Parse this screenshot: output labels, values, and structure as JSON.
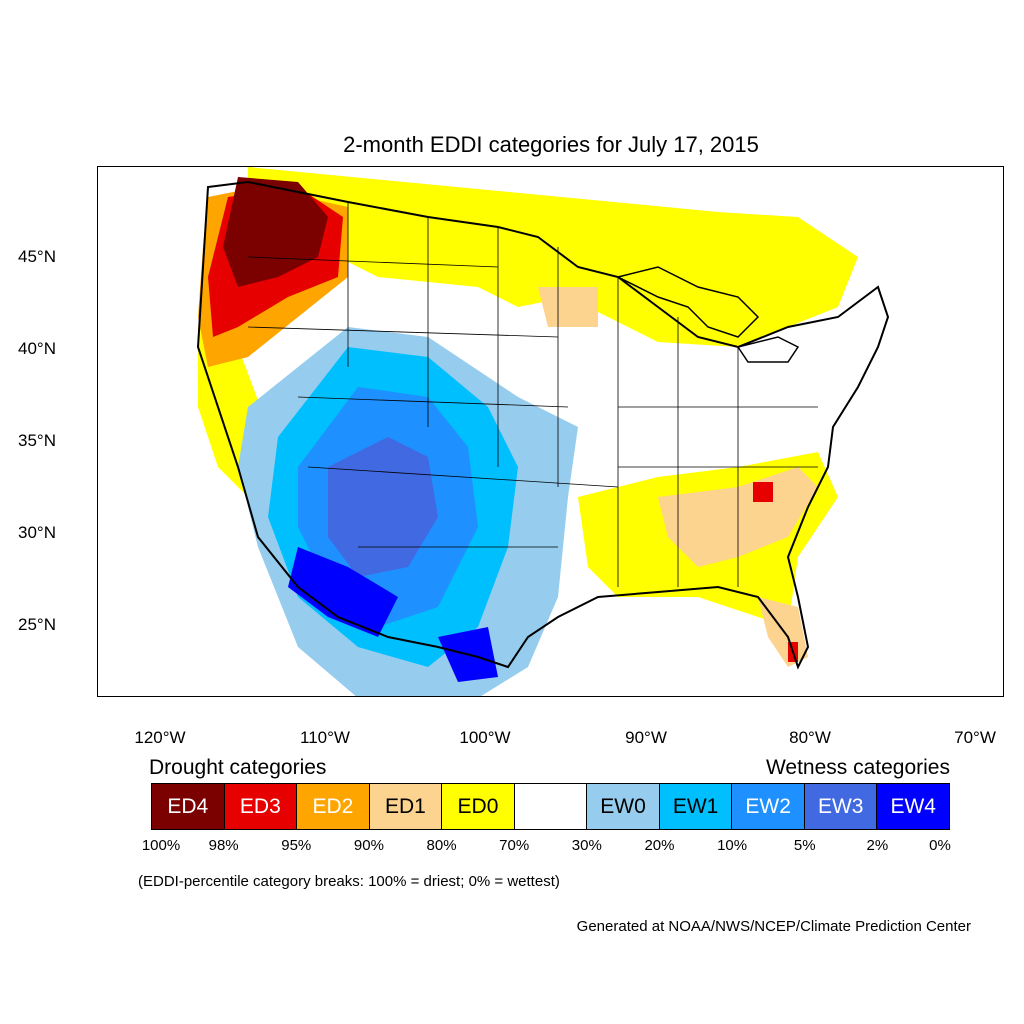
{
  "title": "2-month EDDI categories for July 17, 2015",
  "lat_labels": [
    "45°N",
    "40°N",
    "35°N",
    "30°N",
    "25°N"
  ],
  "lon_labels": [
    "120°W",
    "110°W",
    "100°W",
    "90°W",
    "80°W",
    "70°W"
  ],
  "drought_heading": "Drought categories",
  "wetness_heading": "Wetness categories",
  "legend": [
    {
      "label": "ED4",
      "color": "#7b0000",
      "text_color": "#ffffff"
    },
    {
      "label": "ED3",
      "color": "#e60000",
      "text_color": "#ffffff"
    },
    {
      "label": "ED2",
      "color": "#ffa500",
      "text_color": "#ffffff"
    },
    {
      "label": "ED1",
      "color": "#fcd38f",
      "text_color": "#000000"
    },
    {
      "label": "ED0",
      "color": "#ffff00",
      "text_color": "#000000"
    },
    {
      "label": "",
      "color": "#ffffff",
      "text_color": "#000000"
    },
    {
      "label": "EW0",
      "color": "#96cdee",
      "text_color": "#000000"
    },
    {
      "label": "EW1",
      "color": "#00bfff",
      "text_color": "#000000"
    },
    {
      "label": "EW2",
      "color": "#1e90ff",
      "text_color": "#ffffff"
    },
    {
      "label": "EW3",
      "color": "#4169e1",
      "text_color": "#ffffff"
    },
    {
      "label": "EW4",
      "color": "#0000ff",
      "text_color": "#ffffff"
    }
  ],
  "breaks": [
    "100%",
    "98%",
    "95%",
    "90%",
    "80%",
    "70%",
    "30%",
    "20%",
    "10%",
    "5%",
    "2%",
    "0%"
  ],
  "note": "(EDDI-percentile category breaks: 100% = driest; 0% = wettest)",
  "credit": "Generated at NOAA/NWS/NCEP/Climate Prediction Center"
}
